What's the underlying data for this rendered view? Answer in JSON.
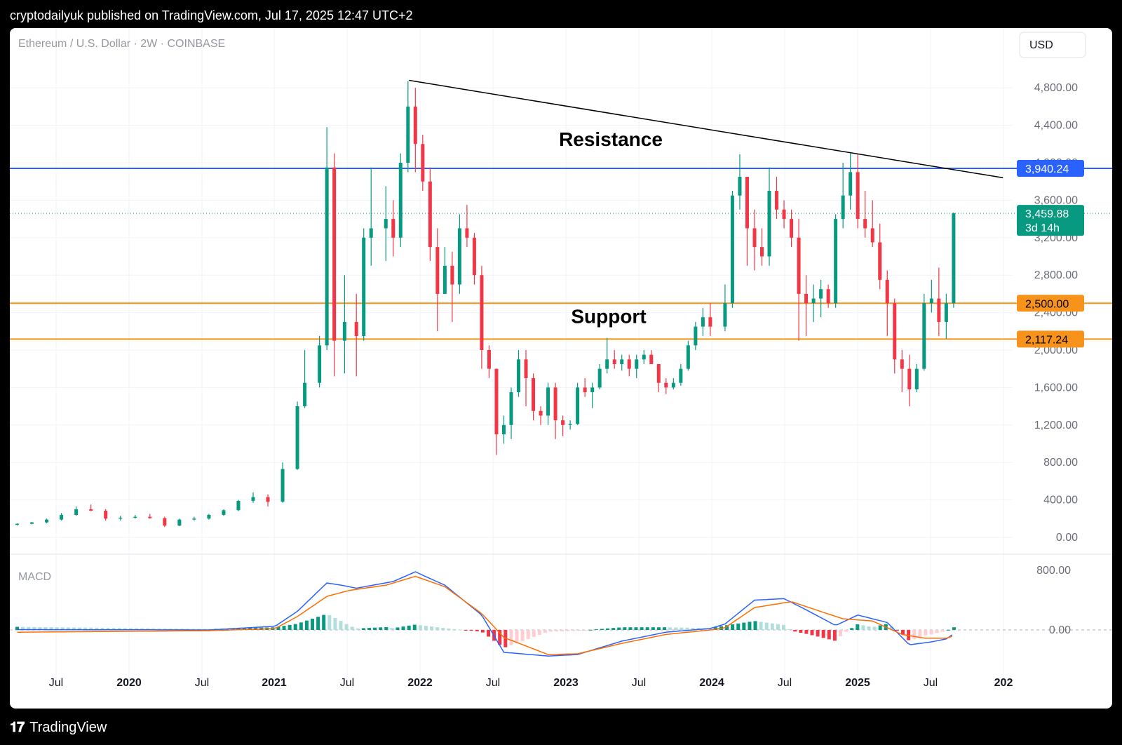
{
  "header": {
    "publisher_text": "cryptodailyuk published on TradingView.com, Jul 17, 2025 12:47 UTC+2"
  },
  "footer": {
    "brand": "TradingView",
    "logo_icon": "tradingview-logo-icon"
  },
  "chart_data": {
    "type": "candlestick",
    "title": "Ethereum / U.S. Dollar · 2W · COINBASE",
    "currency_button": "USD",
    "price_axis": {
      "ticks": [
        "0.00",
        "400.00",
        "800.00",
        "1,200.00",
        "1,600.00",
        "2,000.00",
        "2,400.00",
        "2,800.00",
        "3,200.00",
        "3,600.00",
        "4,000.00",
        "4,400.00",
        "4,800.00"
      ],
      "ylim": [
        0,
        5000
      ]
    },
    "time_axis": {
      "labels": [
        "Jul",
        "2020",
        "Jul",
        "2021",
        "Jul",
        "2022",
        "Jul",
        "2023",
        "Jul",
        "2024",
        "Jul",
        "2025",
        "Jul",
        "202"
      ]
    },
    "current_price": {
      "value": "3,459.88",
      "countdown": "3d 14h",
      "color": "#089981"
    },
    "levels": [
      {
        "label": "3,940.24",
        "value": 3940.24,
        "color": "#2962ff"
      },
      {
        "label": "2,500.00",
        "value": 2500,
        "color": "#f7931a"
      },
      {
        "label": "2,117.24",
        "value": 2117.24,
        "color": "#f7931a"
      }
    ],
    "annotations": [
      {
        "text": "Resistance",
        "price": 4180
      },
      {
        "text": "Support",
        "price": 2290
      }
    ],
    "trendline": {
      "from": [
        "2021-11-10",
        4880
      ],
      "to": [
        "2025-11-20",
        3840
      ],
      "color": "#000000"
    },
    "candle_colors": {
      "up": "#089981",
      "down": "#f23645"
    },
    "candles_ohlc": [
      [
        2019.2,
        135,
        150,
        125,
        145
      ],
      [
        2019.3,
        145,
        165,
        140,
        160
      ],
      [
        2019.4,
        160,
        200,
        150,
        190
      ],
      [
        2019.5,
        190,
        260,
        180,
        240
      ],
      [
        2019.6,
        240,
        330,
        230,
        300
      ],
      [
        2019.7,
        300,
        350,
        280,
        285
      ],
      [
        2019.8,
        285,
        300,
        180,
        200
      ],
      [
        2019.9,
        200,
        230,
        180,
        210
      ],
      [
        2020.0,
        210,
        240,
        200,
        220
      ],
      [
        2020.1,
        220,
        250,
        200,
        205
      ],
      [
        2020.2,
        205,
        220,
        110,
        125
      ],
      [
        2020.3,
        125,
        200,
        120,
        190
      ],
      [
        2020.4,
        190,
        220,
        180,
        200
      ],
      [
        2020.5,
        200,
        250,
        190,
        240
      ],
      [
        2020.6,
        240,
        300,
        230,
        290
      ],
      [
        2020.7,
        290,
        400,
        280,
        390
      ],
      [
        2020.8,
        390,
        480,
        370,
        430
      ],
      [
        2020.9,
        430,
        460,
        330,
        380
      ],
      [
        2021.0,
        380,
        800,
        370,
        730
      ],
      [
        2021.1,
        730,
        1450,
        720,
        1400
      ],
      [
        2021.15,
        1400,
        2000,
        1380,
        1650
      ],
      [
        2021.25,
        1650,
        2150,
        1600,
        2050
      ],
      [
        2021.3,
        2050,
        4380,
        2000,
        3950
      ],
      [
        2021.35,
        3950,
        4100,
        1720,
        2100
      ],
      [
        2021.42,
        2100,
        2800,
        1750,
        2300
      ],
      [
        2021.5,
        2300,
        2600,
        1720,
        2150
      ],
      [
        2021.55,
        2150,
        3300,
        2100,
        3200
      ],
      [
        2021.6,
        3200,
        3950,
        2900,
        3300
      ],
      [
        2021.7,
        3300,
        3750,
        2950,
        3400
      ],
      [
        2021.75,
        3400,
        3600,
        3000,
        3200
      ],
      [
        2021.8,
        3200,
        4100,
        3100,
        4000
      ],
      [
        2021.85,
        4000,
        4870,
        3900,
        4600
      ],
      [
        2021.9,
        4600,
        4800,
        3900,
        4200
      ],
      [
        2021.95,
        4200,
        4300,
        3700,
        3800
      ],
      [
        2022.0,
        3800,
        3950,
        2950,
        3100
      ],
      [
        2022.05,
        3100,
        3300,
        2200,
        2600
      ],
      [
        2022.1,
        2600,
        3100,
        2600,
        2900
      ],
      [
        2022.15,
        2900,
        3050,
        2300,
        2700
      ],
      [
        2022.2,
        2700,
        3450,
        2600,
        3300
      ],
      [
        2022.25,
        3300,
        3550,
        3100,
        3200
      ],
      [
        2022.3,
        3200,
        3250,
        2700,
        2800
      ],
      [
        2022.35,
        2800,
        2900,
        1800,
        2000
      ],
      [
        2022.4,
        2000,
        2050,
        1700,
        1800
      ],
      [
        2022.45,
        1800,
        1800,
        880,
        1100
      ],
      [
        2022.5,
        1100,
        1300,
        1000,
        1200
      ],
      [
        2022.55,
        1200,
        1600,
        1050,
        1550
      ],
      [
        2022.6,
        1550,
        2000,
        1500,
        1900
      ],
      [
        2022.65,
        1900,
        2000,
        1400,
        1700
      ],
      [
        2022.7,
        1700,
        1750,
        1250,
        1350
      ],
      [
        2022.75,
        1350,
        1400,
        1200,
        1300
      ],
      [
        2022.8,
        1300,
        1650,
        1200,
        1600
      ],
      [
        2022.85,
        1600,
        1650,
        1050,
        1250
      ],
      [
        2022.9,
        1250,
        1300,
        1080,
        1200
      ],
      [
        2022.95,
        1200,
        1250,
        1150,
        1210
      ],
      [
        2023.0,
        1210,
        1650,
        1200,
        1600
      ],
      [
        2023.05,
        1600,
        1700,
        1500,
        1550
      ],
      [
        2023.1,
        1550,
        1650,
        1380,
        1600
      ],
      [
        2023.15,
        1600,
        1850,
        1580,
        1800
      ],
      [
        2023.2,
        1800,
        2130,
        1750,
        1900
      ],
      [
        2023.25,
        1900,
        2000,
        1800,
        1850
      ],
      [
        2023.3,
        1850,
        1950,
        1780,
        1900
      ],
      [
        2023.35,
        1900,
        1950,
        1720,
        1800
      ],
      [
        2023.4,
        1800,
        1950,
        1700,
        1900
      ],
      [
        2023.45,
        1900,
        2000,
        1850,
        1950
      ],
      [
        2023.5,
        1950,
        2000,
        1850,
        1850
      ],
      [
        2023.55,
        1850,
        1850,
        1550,
        1650
      ],
      [
        2023.6,
        1650,
        1700,
        1530,
        1600
      ],
      [
        2023.65,
        1600,
        1700,
        1580,
        1650
      ],
      [
        2023.7,
        1650,
        1850,
        1620,
        1800
      ],
      [
        2023.75,
        1800,
        2100,
        1780,
        2050
      ],
      [
        2023.8,
        2050,
        2300,
        2000,
        2250
      ],
      [
        2023.85,
        2250,
        2450,
        2150,
        2350
      ],
      [
        2023.9,
        2350,
        2500,
        2150,
        2250
      ],
      [
        2024.0,
        2250,
        2700,
        2200,
        2500
      ],
      [
        2024.05,
        2500,
        3700,
        2450,
        3650
      ],
      [
        2024.1,
        3650,
        4090,
        3500,
        3850
      ],
      [
        2024.15,
        3850,
        3850,
        2900,
        3300
      ],
      [
        2024.2,
        3300,
        3500,
        2850,
        3100
      ],
      [
        2024.25,
        3100,
        3300,
        2900,
        3000
      ],
      [
        2024.3,
        3000,
        3950,
        2900,
        3700
      ],
      [
        2024.35,
        3700,
        3850,
        3400,
        3500
      ],
      [
        2024.4,
        3500,
        3600,
        3300,
        3400
      ],
      [
        2024.45,
        3400,
        3500,
        3100,
        3200
      ],
      [
        2024.5,
        3200,
        3400,
        2100,
        2600
      ],
      [
        2024.55,
        2600,
        2800,
        2150,
        2500
      ],
      [
        2024.6,
        2500,
        2700,
        2300,
        2550
      ],
      [
        2024.65,
        2550,
        2750,
        2350,
        2650
      ],
      [
        2024.7,
        2650,
        2700,
        2450,
        2500
      ],
      [
        2024.75,
        2500,
        3450,
        2450,
        3400
      ],
      [
        2024.8,
        3400,
        4000,
        3300,
        3650
      ],
      [
        2024.85,
        3650,
        4100,
        3500,
        3900
      ],
      [
        2024.9,
        3900,
        4100,
        3300,
        3400
      ],
      [
        2024.95,
        3400,
        3700,
        3200,
        3300
      ],
      [
        2025.0,
        3300,
        3600,
        3100,
        3150
      ],
      [
        2025.05,
        3150,
        3350,
        2650,
        2750
      ],
      [
        2025.1,
        2750,
        2850,
        2150,
        2500
      ],
      [
        2025.15,
        2500,
        2550,
        1750,
        1900
      ],
      [
        2025.2,
        1900,
        2000,
        1550,
        1800
      ],
      [
        2025.25,
        1800,
        1950,
        1400,
        1580
      ],
      [
        2025.3,
        1580,
        1850,
        1550,
        1800
      ],
      [
        2025.35,
        1800,
        2600,
        1780,
        2500
      ],
      [
        2025.4,
        2500,
        2750,
        2400,
        2550
      ],
      [
        2025.45,
        2550,
        2880,
        2150,
        2300
      ],
      [
        2025.5,
        2300,
        2600,
        2120,
        2500
      ],
      [
        2025.55,
        2500,
        3470,
        2450,
        3460
      ]
    ],
    "macd": {
      "label": "MACD",
      "ticks": [
        "800.00",
        "0.00"
      ],
      "ylim": [
        -400,
        900
      ],
      "macd_line": [
        [
          2019.2,
          5
        ],
        [
          2020.5,
          0
        ],
        [
          2020.95,
          50
        ],
        [
          2021.1,
          250
        ],
        [
          2021.3,
          630
        ],
        [
          2021.4,
          600
        ],
        [
          2021.5,
          560
        ],
        [
          2021.75,
          650
        ],
        [
          2021.9,
          780
        ],
        [
          2022.1,
          600
        ],
        [
          2022.35,
          200
        ],
        [
          2022.5,
          -300
        ],
        [
          2022.8,
          -350
        ],
        [
          2023.0,
          -330
        ],
        [
          2023.3,
          -150
        ],
        [
          2023.6,
          -30
        ],
        [
          2023.9,
          20
        ],
        [
          2024.0,
          80
        ],
        [
          2024.2,
          400
        ],
        [
          2024.4,
          420
        ],
        [
          2024.55,
          270
        ],
        [
          2024.75,
          60
        ],
        [
          2024.9,
          200
        ],
        [
          2025.1,
          100
        ],
        [
          2025.25,
          -200
        ],
        [
          2025.4,
          -160
        ],
        [
          2025.5,
          -120
        ],
        [
          2025.55,
          -50
        ]
      ],
      "signal_line": [
        [
          2019.2,
          -30
        ],
        [
          2020.5,
          -10
        ],
        [
          2020.95,
          20
        ],
        [
          2021.1,
          180
        ],
        [
          2021.3,
          450
        ],
        [
          2021.45,
          530
        ],
        [
          2021.7,
          600
        ],
        [
          2021.9,
          720
        ],
        [
          2022.1,
          580
        ],
        [
          2022.35,
          220
        ],
        [
          2022.5,
          -100
        ],
        [
          2022.8,
          -330
        ],
        [
          2023.0,
          -320
        ],
        [
          2023.3,
          -180
        ],
        [
          2023.6,
          -60
        ],
        [
          2023.9,
          0
        ],
        [
          2024.0,
          30
        ],
        [
          2024.2,
          300
        ],
        [
          2024.45,
          380
        ],
        [
          2024.6,
          280
        ],
        [
          2024.8,
          150
        ],
        [
          2025.0,
          120
        ],
        [
          2025.2,
          -60
        ],
        [
          2025.35,
          -110
        ],
        [
          2025.5,
          -110
        ],
        [
          2025.55,
          -80
        ]
      ],
      "hist_colors": {
        "up_strong": "#089981",
        "up_weak": "#b2dfdb",
        "down_strong": "#f23645",
        "down_weak": "#ffcdd2"
      }
    }
  }
}
